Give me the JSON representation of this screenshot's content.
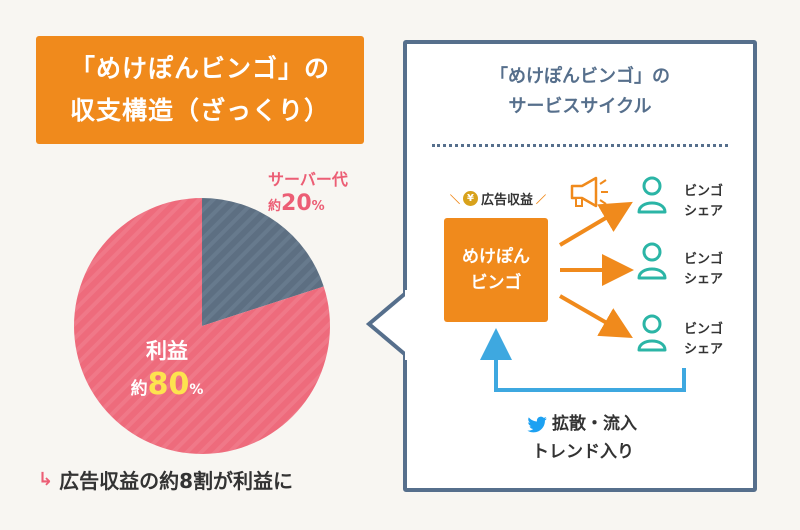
{
  "title": {
    "line1": "「めけぽんビンゴ」の",
    "line2": "収支構造（ざっくり）"
  },
  "chart_data": {
    "type": "pie",
    "title": "",
    "slices": [
      {
        "label": "サーバー代",
        "value": 20,
        "color": "#5d6f82"
      },
      {
        "label": "利益",
        "value": 80,
        "color": "#ee6b7c"
      }
    ]
  },
  "pie_labels": {
    "server": {
      "name": "サーバー代",
      "prefix": "約",
      "value": "20",
      "unit": "%"
    },
    "profit": {
      "name": "利益",
      "prefix": "約",
      "value": "80",
      "unit": "%"
    }
  },
  "note": {
    "arrow": "↳",
    "text": "広告収益の約8割が利益に"
  },
  "cycle": {
    "title_line1": "「めけぽんビンゴ」の",
    "title_line2": "サービスサイクル",
    "ad_revenue": "広告収益",
    "yen": "¥",
    "app_line1": "めけぽん",
    "app_line2": "ビンゴ",
    "shares": [
      {
        "line1": "ビンゴ",
        "line2": "シェア"
      },
      {
        "line1": "ビンゴ",
        "line2": "シェア"
      },
      {
        "line1": "ビンゴ",
        "line2": "シェア"
      }
    ],
    "spread_line1": "拡散・流入",
    "spread_line2": "トレンド入り"
  },
  "colors": {
    "orange": "#f08a1c",
    "pink": "#ee6b7c",
    "slate": "#5d6f82",
    "navy": "#566f8c",
    "teal": "#2bb5a6",
    "twitter": "#1da1f2",
    "link_blue": "#3ea8e0"
  },
  "icons": [
    "yen-icon",
    "megaphone-icon",
    "person-icon",
    "twitter-icon",
    "arrow-right-icon"
  ]
}
